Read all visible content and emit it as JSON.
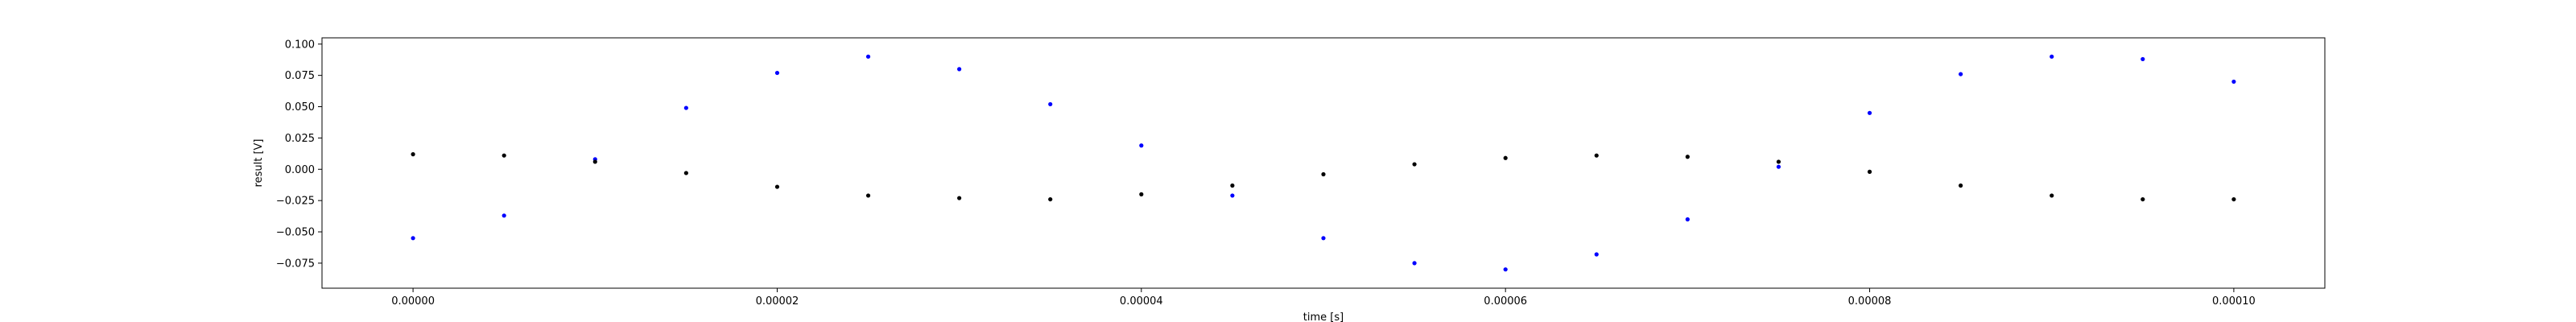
{
  "chart_data": {
    "type": "scatter",
    "title": "",
    "xlabel": "time [s]",
    "ylabel": "result [V]",
    "xlim": [
      -5e-06,
      0.000105
    ],
    "ylim": [
      -0.095,
      0.105
    ],
    "grid": false,
    "legend": "none",
    "xticks": [
      0,
      2e-05,
      4e-05,
      6e-05,
      8e-05,
      0.0001
    ],
    "xtick_labels": [
      "0.00000",
      "0.00002",
      "0.00004",
      "0.00006",
      "0.00008",
      "0.00010"
    ],
    "yticks": [
      -0.075,
      -0.05,
      -0.025,
      0,
      0.025,
      0.05,
      0.075,
      0.1
    ],
    "ytick_labels": [
      "−0.075",
      "−0.050",
      "−0.025",
      "0.000",
      "0.025",
      "0.050",
      "0.075",
      "0.100"
    ],
    "series": [
      {
        "color": "#0000ff",
        "x": [
          0,
          5e-06,
          1e-05,
          1.5e-05,
          2e-05,
          2.5e-05,
          3e-05,
          3.5e-05,
          4e-05,
          4.5e-05,
          5e-05,
          5.5e-05,
          6e-05,
          6.5e-05,
          7e-05,
          7.5e-05,
          8e-05,
          8.5e-05,
          9e-05,
          9.5e-05,
          0.0001
        ],
        "y": [
          -0.055,
          -0.037,
          0.008,
          0.049,
          0.077,
          0.09,
          0.08,
          0.052,
          0.019,
          -0.021,
          -0.055,
          -0.075,
          -0.08,
          -0.068,
          -0.04,
          0.002,
          0.045,
          0.076,
          0.09,
          0.088,
          0.07
        ]
      },
      {
        "color": "#000000",
        "x": [
          0,
          5e-06,
          1e-05,
          1.5e-05,
          2e-05,
          2.5e-05,
          3e-05,
          3.5e-05,
          4e-05,
          4.5e-05,
          5e-05,
          5.5e-05,
          6e-05,
          6.5e-05,
          7e-05,
          7.5e-05,
          8e-05,
          8.5e-05,
          9e-05,
          9.5e-05,
          0.0001
        ],
        "y": [
          0.012,
          0.011,
          0.006,
          -0.003,
          -0.014,
          -0.021,
          -0.023,
          -0.024,
          -0.02,
          -0.013,
          -0.004,
          0.004,
          0.009,
          0.011,
          0.01,
          0.006,
          -0.002,
          -0.013,
          -0.021,
          -0.024,
          -0.024
        ]
      }
    ]
  }
}
